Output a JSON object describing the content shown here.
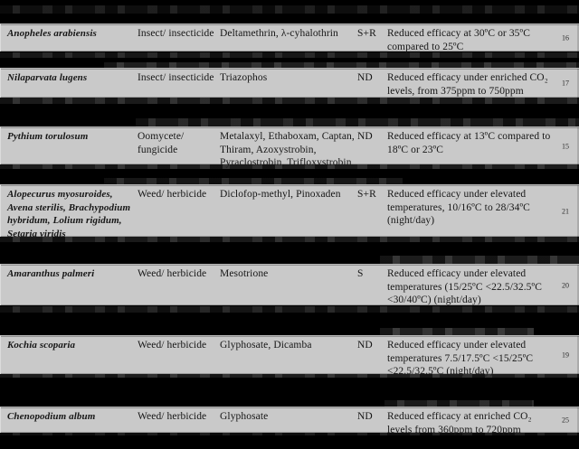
{
  "page": {
    "background_color": "#000000",
    "row_background_color": "#c9c9c9",
    "text_color": "#161616"
  },
  "table": {
    "rows": [
      {
        "species": "Anopheles arabiensis",
        "type": "Insect/ insecticide",
        "pesticides": "Deltamethrin, λ-cyhalothrin",
        "code": "S+R",
        "effect": "Reduced efficacy at 30ºC or 35ºC compared to 25ºC",
        "ref": "16"
      },
      {
        "species": "Nilaparvata lugens",
        "type": "Insect/ insecticide",
        "pesticides": "Triazophos",
        "code": "ND",
        "effect": "Reduced efficacy under enriched CO₂ levels, from 375ppm to 750ppm",
        "ref": "17"
      },
      {
        "species": "Pythium torulosum",
        "type": "Oomycete/ fungicide",
        "pesticides": "Metalaxyl, Ethaboxam, Captan, Thiram, Azoxystrobin, Pyraclostrobin, Trifloxystrobin",
        "code": "ND",
        "effect": "Reduced efficacy at 13ºC compared to 18ºC or 23ºC",
        "ref": "15"
      },
      {
        "species": "Alopecurus myosuroides, Avena sterilis, Brachypodium hybridum, Lolium rigidum, Setaria viridis",
        "type": "Weed/ herbicide",
        "pesticides": "Diclofop-methyl, Pinoxaden",
        "code": "S+R",
        "effect": "Reduced efficacy under elevated temperatures, 10/16ºC to 28/34ºC (night/day)",
        "ref": "21"
      },
      {
        "species": "Amaranthus palmeri",
        "type": "Weed/ herbicide",
        "pesticides": "Mesotrione",
        "code": "S",
        "effect": "Reduced efficacy under elevated temperatures (15/25ºC <22.5/32.5ºC <30/40ºC) (night/day)",
        "ref": "20"
      },
      {
        "species": "Kochia scoparia",
        "type": "Weed/ herbicide",
        "pesticides": "Glyphosate, Dicamba",
        "code": "ND",
        "effect": "Reduced efficacy under elevated temperatures 7.5/17.5ºC <15/25ºC <22.5/32.5ºC (night/day)",
        "ref": "19"
      },
      {
        "species": "Chenopodium album",
        "type": "Weed/ herbicide",
        "pesticides": "Glyphosate",
        "code": "ND",
        "effect": "Reduced efficacy at enriched CO₂ levels from 360ppm to 720ppm",
        "ref": "25"
      }
    ]
  }
}
